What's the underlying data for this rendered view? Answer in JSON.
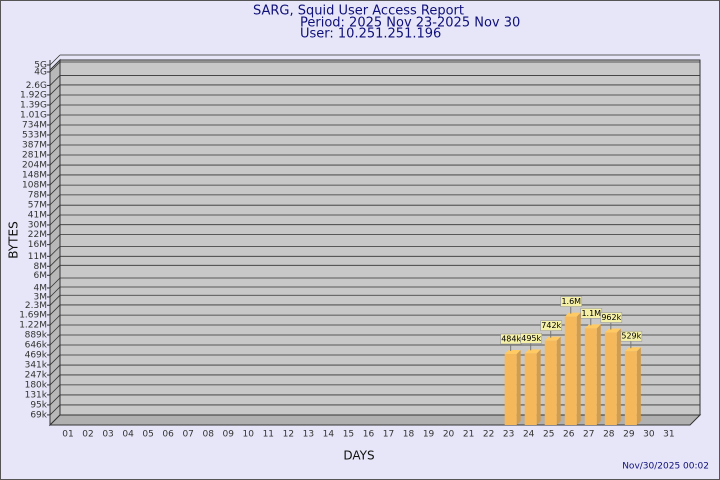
{
  "chart_data": {
    "type": "bar",
    "title": "SARG, Squid User Access Report",
    "subtitle": "Period: 2025 Nov 23-2025 Nov 30",
    "user": "User: 10.251.251.196",
    "x_label": "DAYS",
    "y_label": "BYTES",
    "footer": "Nov/30/2025 00:02",
    "log_scale": true,
    "grid": true,
    "color": "#f5b85a",
    "categories": [
      "01",
      "02",
      "03",
      "04",
      "05",
      "06",
      "07",
      "08",
      "09",
      "10",
      "11",
      "12",
      "13",
      "14",
      "15",
      "16",
      "17",
      "18",
      "19",
      "20",
      "21",
      "22",
      "23",
      "24",
      "25",
      "26",
      "27",
      "28",
      "29",
      "30",
      "31"
    ],
    "values": [
      null,
      null,
      null,
      null,
      null,
      null,
      null,
      null,
      null,
      null,
      null,
      null,
      null,
      null,
      null,
      null,
      null,
      null,
      null,
      null,
      null,
      null,
      484000,
      495000,
      742000,
      1600000,
      1100000,
      962000,
      529000,
      null,
      null
    ],
    "value_labels": [
      null,
      null,
      null,
      null,
      null,
      null,
      null,
      null,
      null,
      null,
      null,
      null,
      null,
      null,
      null,
      null,
      null,
      null,
      null,
      null,
      null,
      null,
      "484k",
      "495k",
      "742k",
      "1.6M",
      "1.1M",
      "962k",
      "529k",
      null,
      null
    ],
    "ylim": [
      50000,
      5000000000
    ],
    "yticks": [
      {
        "value": 69000,
        "label": "69k"
      },
      {
        "value": 95000,
        "label": "95k"
      },
      {
        "value": 131000,
        "label": "131k"
      },
      {
        "value": 180000,
        "label": "180k"
      },
      {
        "value": 247000,
        "label": "247k"
      },
      {
        "value": 341000,
        "label": "341k"
      },
      {
        "value": 469000,
        "label": "469k"
      },
      {
        "value": 646000,
        "label": "646k"
      },
      {
        "value": 889000,
        "label": "889k"
      },
      {
        "value": 1220000,
        "label": "1.22M"
      },
      {
        "value": 1690000,
        "label": "1.69M"
      },
      {
        "value": 2300000,
        "label": "2.3M"
      },
      {
        "value": 3000000,
        "label": "3M"
      },
      {
        "value": 4000000,
        "label": "4M"
      },
      {
        "value": 6000000,
        "label": "6M"
      },
      {
        "value": 8000000,
        "label": "8M"
      },
      {
        "value": 11000000,
        "label": "11M"
      },
      {
        "value": 16000000,
        "label": "16M"
      },
      {
        "value": 22000000,
        "label": "22M"
      },
      {
        "value": 30000000,
        "label": "30M"
      },
      {
        "value": 41000000,
        "label": "41M"
      },
      {
        "value": 57000000,
        "label": "57M"
      },
      {
        "value": 78000000,
        "label": "78M"
      },
      {
        "value": 108000000,
        "label": "108M"
      },
      {
        "value": 148000000,
        "label": "148M"
      },
      {
        "value": 204000000,
        "label": "204M"
      },
      {
        "value": 281000000,
        "label": "281M"
      },
      {
        "value": 387000000,
        "label": "387M"
      },
      {
        "value": 533000000,
        "label": "533M"
      },
      {
        "value": 734000000,
        "label": "734M"
      },
      {
        "value": 1010000000,
        "label": "1.01G"
      },
      {
        "value": 1390000000,
        "label": "1.39G"
      },
      {
        "value": 1920000000,
        "label": "1.92G"
      },
      {
        "value": 2600000000,
        "label": "2.6G"
      },
      {
        "value": 4000000000,
        "label": "4G"
      },
      {
        "value": 5000000000,
        "label": "5G"
      }
    ]
  }
}
